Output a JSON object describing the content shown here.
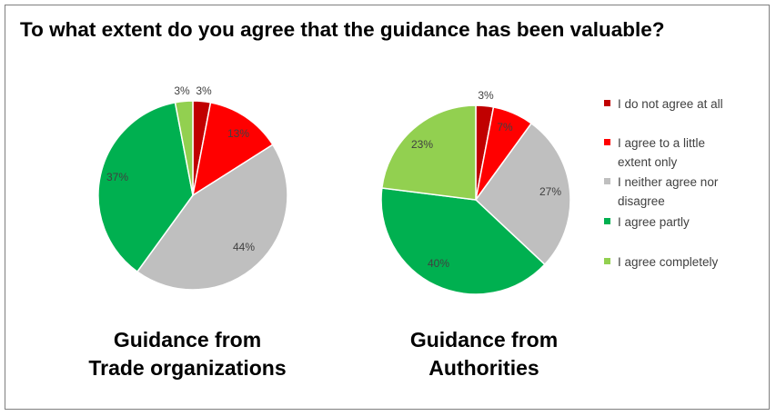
{
  "title": "To what extent do you agree that the guidance has been valuable?",
  "legend": [
    {
      "label": "I do not agree at all",
      "color": "#C00000"
    },
    {
      "label": "I agree to a little extent only",
      "color": "#FF0000"
    },
    {
      "label": "I neither agree nor disagree",
      "color": "#BFBFBF"
    },
    {
      "label": "I agree partly",
      "color": "#00B050"
    },
    {
      "label": "I agree completely",
      "color": "#92D050"
    }
  ],
  "chart_data": [
    {
      "type": "pie",
      "title": "Guidance from Trade organizations",
      "title_lines": [
        "Guidance from",
        "Trade organizations"
      ],
      "categories": [
        "I do not agree at all",
        "I agree to a little extent only",
        "I neither agree nor disagree",
        "I agree partly",
        "I agree completely"
      ],
      "values": [
        3,
        13,
        44,
        37,
        3
      ],
      "labels": [
        "3%",
        "13%",
        "44%",
        "37%",
        "3%"
      ],
      "colors": [
        "#C00000",
        "#FF0000",
        "#BFBFBF",
        "#00B050",
        "#92D050"
      ]
    },
    {
      "type": "pie",
      "title": "Guidance from Authorities",
      "title_lines": [
        "Guidance from",
        "Authorities"
      ],
      "categories": [
        "I do not agree at all",
        "I agree to a little extent only",
        "I neither agree nor disagree",
        "I agree partly",
        "I agree completely"
      ],
      "values": [
        3,
        7,
        27,
        40,
        23
      ],
      "labels": [
        "3%",
        "7%",
        "27%",
        "40%",
        "23%"
      ],
      "colors": [
        "#C00000",
        "#FF0000",
        "#BFBFBF",
        "#00B050",
        "#92D050"
      ]
    }
  ]
}
